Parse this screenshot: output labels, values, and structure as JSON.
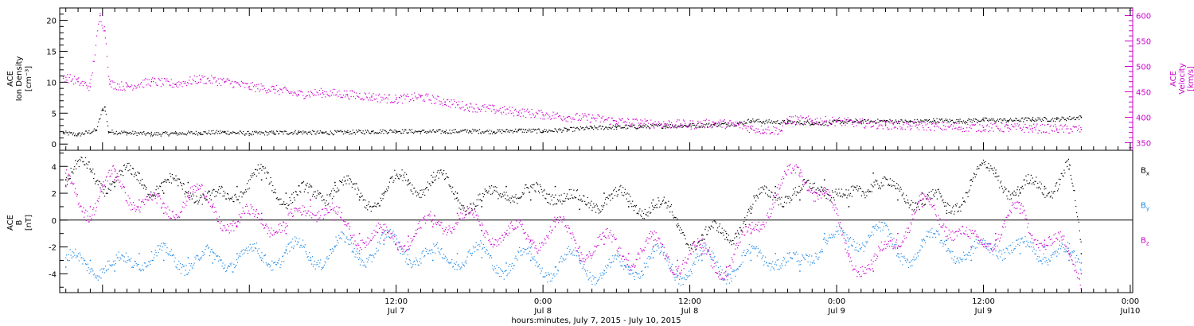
{
  "chart_data": [
    {
      "type": "scatter",
      "panel": "top",
      "ylabel_left": [
        "ACE",
        "Ion Density",
        "[cm⁻³]"
      ],
      "ylabel_right": [
        "ACE",
        "Velocity",
        "[km/s]"
      ],
      "ylim_left": [
        -1,
        22
      ],
      "yticks_left": [
        "0",
        "5",
        "10",
        "15",
        "20"
      ],
      "ylim_right": [
        335,
        615
      ],
      "yticks_right": [
        "350",
        "400",
        "450",
        "500",
        "550",
        "600"
      ],
      "xlim_hours": [
        -15.5,
        72.2
      ],
      "series": [
        {
          "axis": "left",
          "color": "#000000",
          "x": [
            -15.2,
            -14,
            -12.5,
            -12,
            -11.8,
            -11.5,
            -10,
            -8,
            -6,
            -4,
            -2,
            0,
            2,
            4,
            6,
            8,
            10,
            12,
            14,
            16,
            18,
            20,
            22,
            24,
            26,
            28,
            30,
            32,
            34,
            36,
            38,
            40,
            41,
            42,
            44,
            46,
            47.5,
            48,
            50,
            52,
            54,
            56,
            58,
            60,
            62,
            64,
            66,
            68
          ],
          "y": [
            1.8,
            1.5,
            2.2,
            5.5,
            6.0,
            2.0,
            1.8,
            1.6,
            1.7,
            1.8,
            1.9,
            1.7,
            1.8,
            1.9,
            1.8,
            1.9,
            2.0,
            2.1,
            2.0,
            2.0,
            2.1,
            2.0,
            2.2,
            2.1,
            2.3,
            2.6,
            2.7,
            2.8,
            2.9,
            3.0,
            3.1,
            3.3,
            3.8,
            3.6,
            3.5,
            3.4,
            3.3,
            3.6,
            3.6,
            3.7,
            3.6,
            3.8,
            3.7,
            3.9,
            3.8,
            4.0,
            4.0,
            4.3
          ]
        },
        {
          "axis": "right",
          "color": "#cc00cc",
          "x": [
            -15.2,
            -14,
            -13,
            -12.2,
            -11.8,
            -11.4,
            -10,
            -8,
            -6,
            -4,
            -2,
            0,
            2,
            4,
            6,
            8,
            10,
            12,
            14,
            16,
            18,
            20,
            22,
            24,
            26,
            28,
            30,
            32,
            34,
            36,
            38,
            40,
            41,
            42,
            43.5,
            44,
            46,
            48,
            50,
            52,
            54,
            56,
            58,
            60,
            62,
            64,
            66,
            68
          ],
          "y": [
            480,
            470,
            460,
            600,
            570,
            465,
            460,
            470,
            465,
            475,
            470,
            460,
            455,
            445,
            448,
            445,
            440,
            435,
            440,
            430,
            420,
            415,
            410,
            405,
            400,
            398,
            392,
            388,
            387,
            385,
            388,
            385,
            378,
            375,
            374,
            395,
            393,
            392,
            388,
            385,
            383,
            382,
            380,
            380,
            379,
            378,
            377,
            376
          ]
        }
      ]
    },
    {
      "type": "scatter",
      "panel": "bottom",
      "ylabel_left": [
        "ACE",
        "B",
        "[nT]"
      ],
      "ylim": [
        -5.4,
        5.2
      ],
      "yticks": [
        "4",
        "2",
        "0",
        "-2",
        "-4"
      ],
      "xlim_hours": [
        -15.5,
        72.2
      ],
      "series": [
        {
          "name": "B",
          "sub": "x",
          "color": "#000000",
          "x": [
            -15,
            -13,
            -11,
            -9,
            -7,
            -5,
            -3,
            -1,
            1,
            3,
            5,
            7,
            9,
            11,
            13,
            15,
            17,
            19,
            21,
            23,
            25,
            27,
            29,
            31,
            33,
            35,
            37,
            39,
            41,
            43,
            45,
            47,
            49,
            51,
            53,
            55,
            57,
            59,
            61,
            63,
            65,
            67,
            68
          ],
          "y": [
            3.0,
            3.8,
            2.5,
            3.5,
            2.0,
            2.8,
            1.0,
            2.5,
            3.0,
            2.0,
            1.5,
            2.8,
            1.5,
            2.0,
            3.0,
            2.8,
            2.0,
            1.0,
            2.5,
            1.5,
            2.5,
            0.8,
            2.0,
            1.0,
            1.5,
            -0.5,
            -1.5,
            -1.0,
            0.5,
            2.5,
            1.5,
            3.0,
            1.0,
            3.5,
            1.5,
            2.0,
            0.5,
            3.0,
            3.5,
            2.0,
            2.5,
            3.8,
            -2.5
          ]
        },
        {
          "name": "B",
          "sub": "y",
          "color": "#1e88e5",
          "x": [
            -15,
            -13,
            -11,
            -9,
            -7,
            -5,
            -3,
            -1,
            1,
            3,
            5,
            7,
            9,
            11,
            13,
            15,
            17,
            19,
            21,
            23,
            25,
            27,
            29,
            31,
            33,
            35,
            37,
            39,
            41,
            43,
            45,
            47,
            49,
            51,
            53,
            55,
            57,
            59,
            61,
            63,
            65,
            67,
            68
          ],
          "y": [
            -3.5,
            -3.0,
            -3.8,
            -2.5,
            -3.0,
            -2.8,
            -3.2,
            -2.5,
            -3.0,
            -2.2,
            -2.8,
            -2.0,
            -2.5,
            -1.8,
            -2.2,
            -3.0,
            -2.5,
            -2.8,
            -3.2,
            -3.0,
            -3.5,
            -3.0,
            -4.0,
            -3.5,
            -2.8,
            -3.8,
            -3.0,
            -3.5,
            -3.0,
            -2.5,
            -3.8,
            -1.0,
            -2.0,
            -0.5,
            -2.5,
            -2.0,
            -1.5,
            -3.0,
            -1.5,
            -2.5,
            -2.0,
            -3.0,
            -3.2
          ]
        },
        {
          "name": "B",
          "sub": "z",
          "color": "#cc00cc",
          "x": [
            -15,
            -13,
            -11,
            -9,
            -7,
            -5,
            -3,
            -1,
            1,
            3,
            5,
            7,
            9,
            11,
            13,
            15,
            17,
            19,
            21,
            23,
            25,
            27,
            29,
            31,
            33,
            35,
            37,
            39,
            41,
            43,
            45,
            47,
            49,
            51,
            53,
            55,
            57,
            59,
            61,
            63,
            65,
            67,
            68
          ],
          "y": [
            2.5,
            1.0,
            3.0,
            1.5,
            0.5,
            2.0,
            1.0,
            -0.5,
            0.5,
            -1.0,
            1.5,
            0.0,
            -1.0,
            -1.5,
            -1.2,
            -0.5,
            0.5,
            -0.8,
            -1.0,
            -1.5,
            -0.5,
            -2.0,
            -1.8,
            -2.5,
            -2.0,
            -3.0,
            -2.5,
            -3.5,
            -1.0,
            2.0,
            3.5,
            2.0,
            -2.5,
            -3.8,
            -1.0,
            1.0,
            0.0,
            -2.0,
            -1.0,
            0.5,
            -1.5,
            -2.5,
            -4.0
          ]
        }
      ]
    }
  ],
  "x_axis": {
    "ticks": [
      {
        "hours": 12,
        "time": "12:00",
        "day": "Jul 7"
      },
      {
        "hours": 24,
        "time": "0:00",
        "day": "Jul 8"
      },
      {
        "hours": 36,
        "time": "12:00",
        "day": "Jul 8"
      },
      {
        "hours": 48,
        "time": "0:00",
        "day": "Jul 9"
      },
      {
        "hours": 60,
        "time": "12:00",
        "day": "Jul 9"
      },
      {
        "hours": 72,
        "time": "0:00",
        "day": "Jul10"
      }
    ],
    "title": "hours:minutes, July  7, 2015 - July 10, 2015"
  }
}
